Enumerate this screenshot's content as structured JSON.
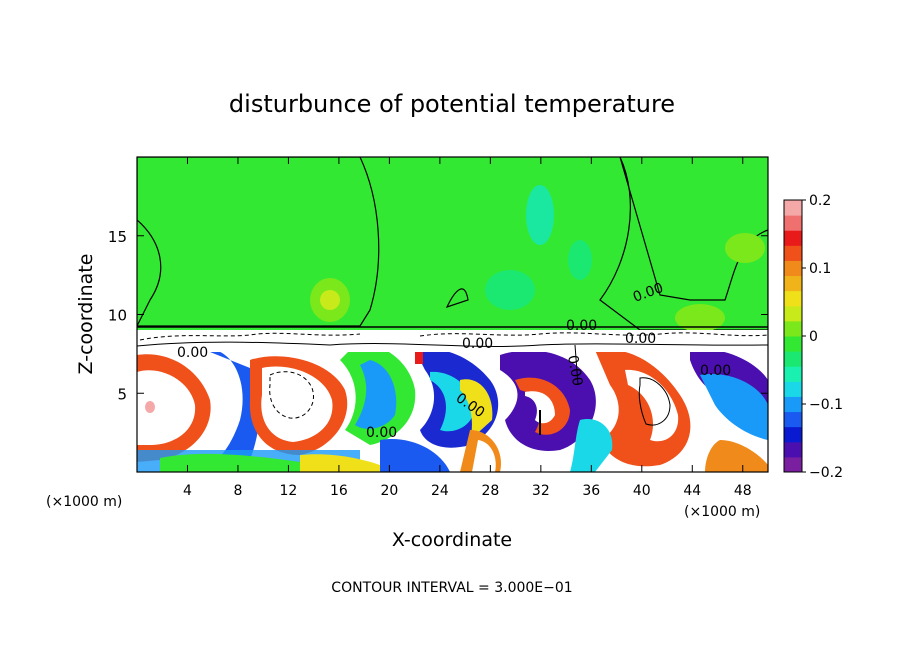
{
  "chart_data": {
    "type": "heatmap",
    "title": "disturbunce of potential temperature",
    "xlabel": "X-coordinate",
    "ylabel": "Z-coordinate",
    "x_unit_label": "(×1000 m)",
    "y_unit_label": "(×1000 m)",
    "xlim": [
      0,
      50
    ],
    "ylim": [
      0,
      20
    ],
    "xticks": [
      4,
      8,
      12,
      16,
      20,
      24,
      28,
      32,
      36,
      40,
      44,
      48
    ],
    "yticks": [
      5,
      10,
      15
    ],
    "colorbar": {
      "range": [
        -0.2,
        0.2
      ],
      "tick_labels": [
        "0.2",
        "0.1",
        "0",
        "−0.1",
        "−0.2"
      ],
      "tick_values": [
        0.2,
        0.1,
        0,
        -0.1,
        -0.2
      ],
      "colors": [
        "#7a1fa0",
        "#4b0fb0",
        "#0a1ad0",
        "#1a5af0",
        "#1a9af8",
        "#1ad8e8",
        "#1af0b0",
        "#1ae870",
        "#33e833",
        "#7ae81a",
        "#c8ea1a",
        "#f0e01a",
        "#f0b41a",
        "#f08a1a",
        "#f0501a",
        "#e81a1a",
        "#f07070",
        "#f5a8a8"
      ]
    },
    "contour_labels": [
      "0.00",
      "0.00",
      "0.00",
      "0.00",
      "0.00",
      "0.00",
      "0.00",
      "0.00",
      "0.00"
    ],
    "notes": {
      "upper_layer_value": 0,
      "inversion_height": 9.2
    },
    "footer": "CONTOUR INTERVAL = 3.000E−01"
  }
}
